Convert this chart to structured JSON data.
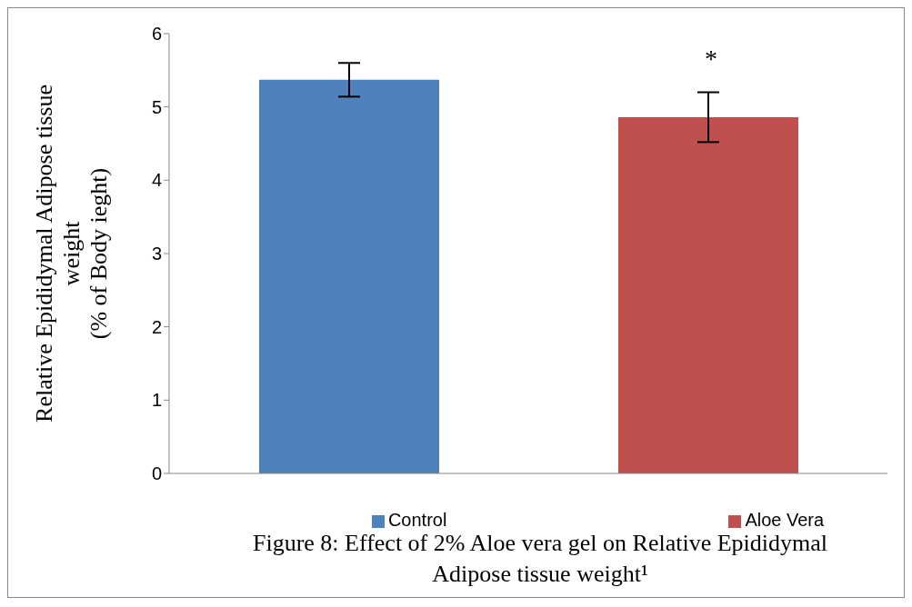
{
  "chart_data": {
    "type": "bar",
    "ylabel": "Relative Epididymal Adipose tissue\nweight\n(% of Body ieght)",
    "categories": [
      null,
      null
    ],
    "series": [
      {
        "name": "Control",
        "color": "#4f81bd",
        "values": [
          5.37,
          null
        ],
        "errors": [
          0.23,
          null
        ]
      },
      {
        "name": "Aloe Vera",
        "color": "#c0504d",
        "values": [
          null,
          4.86
        ],
        "errors": [
          null,
          0.34
        ]
      }
    ],
    "stacked": true,
    "ylim": [
      0,
      6
    ],
    "yticks": [
      0,
      1,
      2,
      3,
      4,
      5,
      6
    ],
    "tick_labels": "y",
    "grid": false,
    "legend": "bottom",
    "annotations": [
      "*",
      "Figure 8: Effect of 2% Aloe vera gel on Relative Epididymal Adipose tissue weight¹"
    ]
  }
}
